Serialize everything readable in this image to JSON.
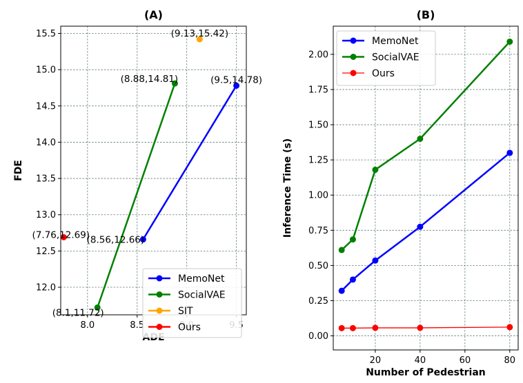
{
  "chart_data": [
    {
      "type": "line",
      "title": "(A)",
      "xlabel": "ADE",
      "ylabel": "FDE",
      "xlim": [
        7.73,
        9.6
      ],
      "ylim": [
        11.62,
        15.6
      ],
      "xticks": [
        8.0,
        8.5,
        9.0,
        9.5
      ],
      "xtick_labels": [
        "8.0",
        "8.5",
        "9.0",
        "9.5"
      ],
      "yticks": [
        12.0,
        12.5,
        13.0,
        13.5,
        14.0,
        14.5,
        15.0,
        15.5
      ],
      "ytick_labels": [
        "12.0",
        "12.5",
        "13.0",
        "13.5",
        "14.0",
        "14.5",
        "15.0",
        "15.5"
      ],
      "grid": true,
      "legend_position": "lower-right",
      "series": [
        {
          "name": "MemoNet",
          "color": "#0000ff",
          "x": [
            8.56,
            9.5
          ],
          "y": [
            12.66,
            14.78
          ],
          "labels": [
            "(8.56,12.66)",
            "(9.5,14.78)"
          ]
        },
        {
          "name": "SocialVAE",
          "color": "#008000",
          "x": [
            8.1,
            8.88
          ],
          "y": [
            11.72,
            14.81
          ],
          "labels": [
            "(8.1,11.72)",
            "(8.88,14.81)"
          ]
        },
        {
          "name": "SIT",
          "color": "#ffa500",
          "x": [
            9.13
          ],
          "y": [
            15.42
          ],
          "labels": [
            "(9.13,15.42)"
          ]
        },
        {
          "name": "Ours",
          "color": "#ff0000",
          "x": [
            7.76
          ],
          "y": [
            12.69
          ],
          "labels": [
            "(7.76,12.69)"
          ]
        }
      ]
    },
    {
      "type": "line",
      "title": "(B)",
      "xlabel": "Number of Pedestrian",
      "ylabel": "Inference Time (s)",
      "xlim": [
        1.25,
        83.75
      ],
      "ylim": [
        -0.1,
        2.2
      ],
      "xticks": [
        20,
        40,
        60,
        80
      ],
      "xtick_labels": [
        "20",
        "40",
        "60",
        "80"
      ],
      "yticks": [
        0.0,
        0.25,
        0.5,
        0.75,
        1.0,
        1.25,
        1.5,
        1.75,
        2.0
      ],
      "ytick_labels": [
        "0.00",
        "0.25",
        "0.50",
        "0.75",
        "1.00",
        "1.25",
        "1.50",
        "1.75",
        "2.00"
      ],
      "grid": true,
      "legend_position": "upper-left",
      "series": [
        {
          "name": "MemoNet",
          "color": "#0000ff",
          "x": [
            5,
            10,
            20,
            40,
            80
          ],
          "y": [
            0.32,
            0.4,
            0.535,
            0.775,
            1.3
          ]
        },
        {
          "name": "SocialVAE",
          "color": "#008000",
          "x": [
            5,
            10,
            20,
            40,
            80
          ],
          "y": [
            0.61,
            0.685,
            1.18,
            1.4,
            2.09
          ]
        },
        {
          "name": "Ours",
          "color": "#ff0000",
          "x": [
            5,
            10,
            20,
            40,
            80
          ],
          "y": [
            0.055,
            0.055,
            0.057,
            0.057,
            0.062
          ]
        }
      ]
    }
  ]
}
